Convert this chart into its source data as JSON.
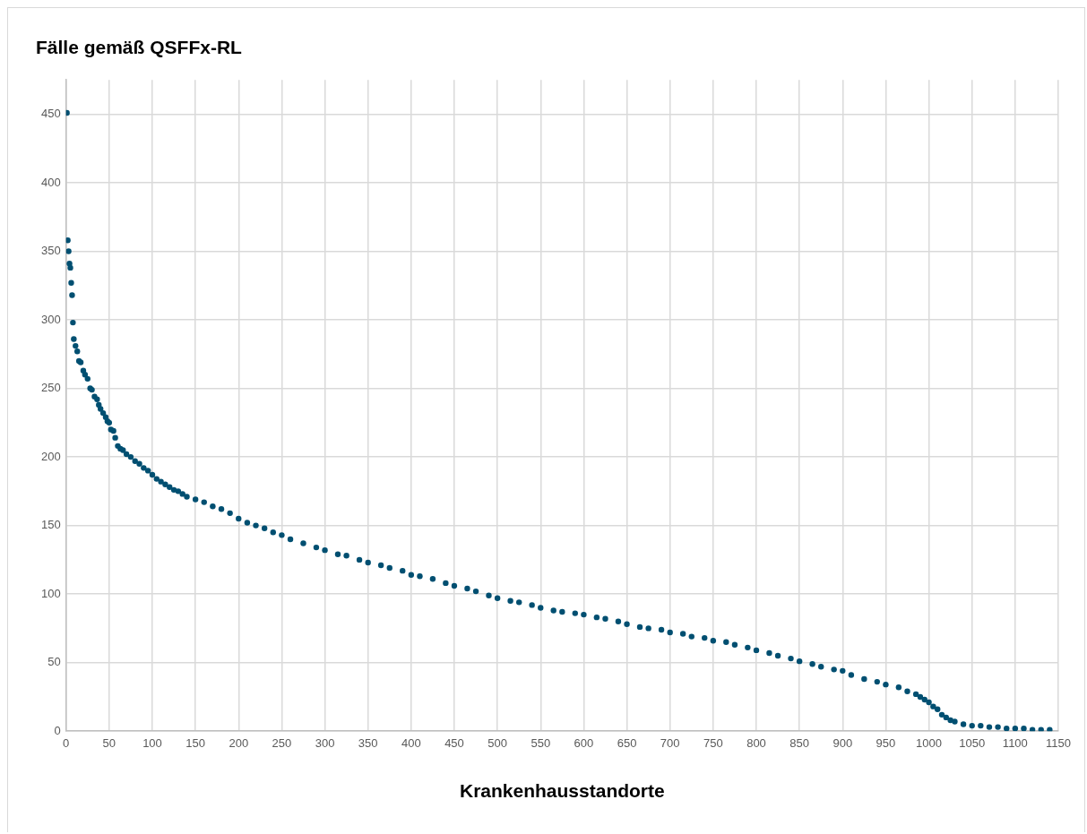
{
  "chart_data": {
    "type": "scatter",
    "title": "Fälle gemäß QSFFx-RL",
    "xlabel": "Krankenhausstandorte",
    "marker": "circle",
    "grid": true,
    "legend": false,
    "xlim": [
      0,
      1150
    ],
    "xticks": [
      0,
      50,
      100,
      150,
      200,
      250,
      300,
      350,
      400,
      450,
      500,
      550,
      600,
      650,
      700,
      750,
      800,
      850,
      900,
      950,
      1000,
      1050,
      1100,
      1150
    ],
    "ylim": [
      0,
      475
    ],
    "yticks": [
      0,
      50,
      100,
      150,
      200,
      250,
      300,
      350,
      400,
      450
    ],
    "series": [
      {
        "color": "#004f71",
        "x": [
          1,
          2,
          3,
          4,
          5,
          6,
          7,
          8,
          9,
          11,
          13,
          15,
          17,
          20,
          22,
          25,
          28,
          30,
          33,
          36,
          38,
          40,
          43,
          46,
          48,
          50,
          52,
          55,
          57,
          60,
          63,
          66,
          70,
          75,
          80,
          85,
          90,
          95,
          100,
          105,
          110,
          115,
          120,
          125,
          130,
          135,
          140,
          150,
          160,
          170,
          180,
          190,
          200,
          210,
          220,
          230,
          240,
          250,
          260,
          275,
          290,
          300,
          315,
          325,
          340,
          350,
          365,
          375,
          390,
          400,
          410,
          425,
          440,
          450,
          465,
          475,
          490,
          500,
          515,
          525,
          540,
          550,
          565,
          575,
          590,
          600,
          615,
          625,
          640,
          650,
          665,
          675,
          690,
          700,
          715,
          725,
          740,
          750,
          765,
          775,
          790,
          800,
          815,
          825,
          840,
          850,
          865,
          875,
          890,
          900,
          910,
          925,
          940,
          950,
          965,
          975,
          985,
          990,
          995,
          1000,
          1005,
          1010,
          1015,
          1020,
          1025,
          1030,
          1040,
          1050,
          1060,
          1070,
          1080,
          1090,
          1100,
          1110,
          1120,
          1130,
          1140
        ],
        "values": [
          451,
          358,
          350,
          341,
          338,
          327,
          318,
          298,
          286,
          281,
          277,
          270,
          269,
          263,
          260,
          257,
          250,
          249,
          244,
          242,
          238,
          235,
          232,
          229,
          226,
          225,
          220,
          219,
          214,
          208,
          206,
          205,
          202,
          200,
          197,
          195,
          192,
          190,
          187,
          184,
          182,
          180,
          178,
          176,
          175,
          173,
          171,
          169,
          167,
          164,
          162,
          159,
          155,
          152,
          150,
          148,
          145,
          143,
          140,
          137,
          134,
          132,
          129,
          128,
          125,
          123,
          121,
          119,
          117,
          114,
          113,
          111,
          108,
          106,
          104,
          102,
          99,
          97,
          95,
          94,
          92,
          90,
          88,
          87,
          86,
          85,
          83,
          82,
          80,
          78,
          76,
          75,
          74,
          72,
          71,
          69,
          68,
          66,
          65,
          63,
          61,
          59,
          57,
          55,
          53,
          51,
          49,
          47,
          45,
          44,
          41,
          38,
          36,
          34,
          32,
          29,
          27,
          25,
          23,
          21,
          18,
          16,
          12,
          10,
          8,
          7,
          5,
          4,
          4,
          3,
          3,
          2,
          2,
          2,
          1,
          1,
          1
        ]
      }
    ]
  }
}
